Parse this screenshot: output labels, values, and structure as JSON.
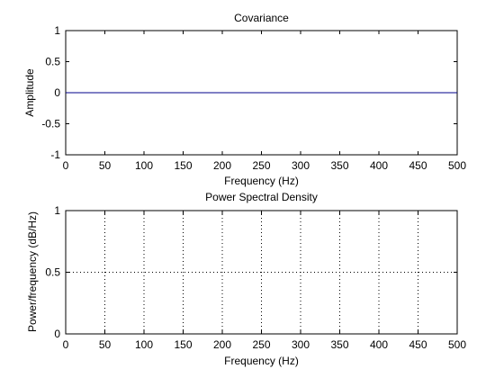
{
  "chart_data": [
    {
      "type": "line",
      "title": "Covariance",
      "xlabel": "Frequency (Hz)",
      "ylabel": "Amplitude",
      "xlim": [
        0,
        500
      ],
      "ylim": [
        -1,
        1
      ],
      "grid": false,
      "xticks": [
        "0",
        "50",
        "100",
        "150",
        "200",
        "250",
        "300",
        "350",
        "400",
        "450",
        "500"
      ],
      "yticks": [
        "1",
        "0.5",
        "0",
        "-0.5",
        "-1"
      ],
      "series": [
        {
          "color": "#00008b",
          "x": [
            0,
            500
          ],
          "y": [
            0,
            0
          ]
        }
      ]
    },
    {
      "type": "line",
      "title": "Power Spectral Density",
      "xlabel": "Frequency (Hz)",
      "ylabel": "Power/frequency (dB/Hz)",
      "xlim": [
        0,
        500
      ],
      "ylim": [
        0,
        1
      ],
      "grid": true,
      "xticks": [
        "0",
        "50",
        "100",
        "150",
        "200",
        "250",
        "300",
        "350",
        "400",
        "450",
        "500"
      ],
      "yticks": [
        "1",
        "0.5",
        "0"
      ],
      "series": []
    }
  ]
}
